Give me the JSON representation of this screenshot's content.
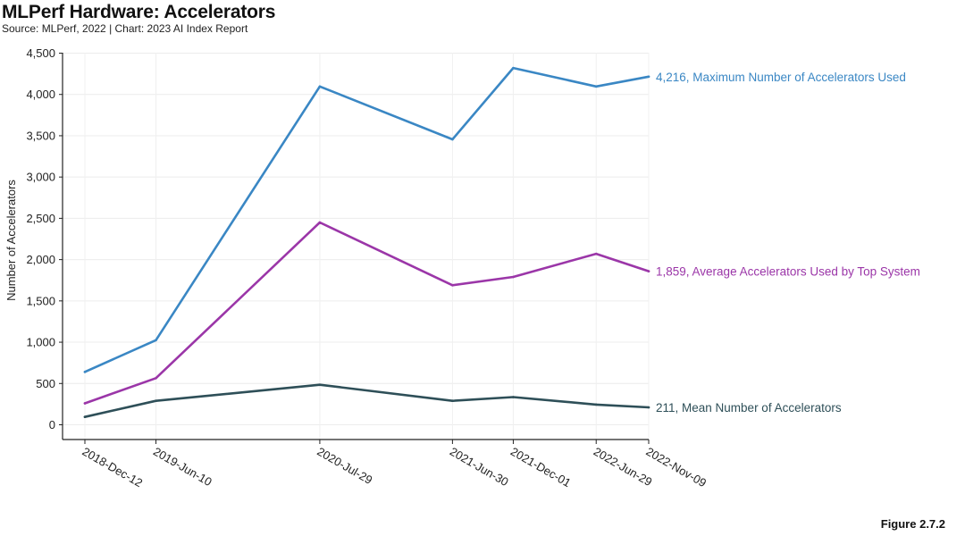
{
  "header": {
    "title": "MLPerf Hardware: Accelerators",
    "subtitle": "Source: MLPerf, 2022 | Chart: 2023 AI Index Report"
  },
  "figure_label": "Figure 2.7.2",
  "chart_data": {
    "type": "line",
    "title": "MLPerf Hardware: Accelerators",
    "xlabel": "",
    "ylabel": "Number of Accelerators",
    "x": [
      "2018-Dec-12",
      "2019-Jun-10",
      "2020-Jul-29",
      "2021-Jun-30",
      "2021-Dec-01",
      "2022-Jun-29",
      "2022-Nov-09"
    ],
    "ylim": [
      0,
      4500
    ],
    "yticks": [
      0,
      500,
      1000,
      1500,
      2000,
      2500,
      3000,
      3500,
      4000,
      4500
    ],
    "ytick_labels": [
      "0",
      "500",
      "1,000",
      "1,500",
      "2,000",
      "2,500",
      "3,000",
      "3,500",
      "4,000",
      "4,500"
    ],
    "grid": true,
    "series": [
      {
        "name": "Maximum Number of Accelerators Used",
        "color": "#3a87c4",
        "values": [
          640,
          1024,
          4096,
          3456,
          4320,
          4096,
          4216
        ],
        "end_label": "4,216, Maximum Number of Accelerators Used"
      },
      {
        "name": "Average Accelerators Used by Top System",
        "color": "#9b36a8",
        "values": [
          260,
          565,
          2450,
          1690,
          1790,
          2070,
          1859
        ],
        "end_label": "1,859, Average Accelerators Used by Top System"
      },
      {
        "name": "Mean Number of Accelerators",
        "color": "#2e4f58",
        "values": [
          95,
          290,
          485,
          290,
          335,
          245,
          211
        ],
        "end_label": "211, Mean Number of Accelerators"
      }
    ]
  }
}
